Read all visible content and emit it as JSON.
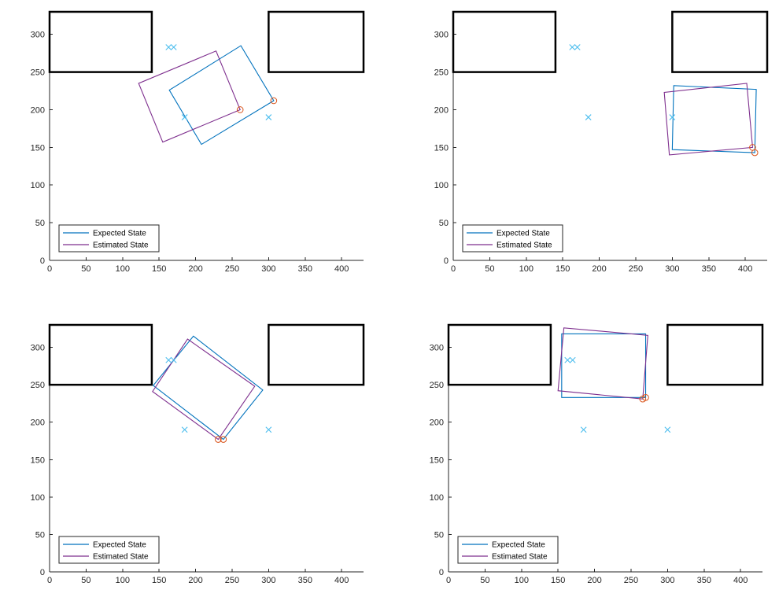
{
  "colors": {
    "expected": "#0072BD",
    "estimated": "#7E2F8E",
    "landmark": "#4DBEEE",
    "front_marker": "#D95319",
    "obstacle": "#000000",
    "axis": "#262626"
  },
  "legend": {
    "expected_label": "Expected State",
    "estimated_label": "Estimated State",
    "placement": "bottom-left"
  },
  "chart_data": [
    {
      "type": "scatter",
      "title": "",
      "xlabel": "",
      "ylabel": "",
      "xlim": [
        0,
        430
      ],
      "ylim": [
        0,
        330
      ],
      "xticks": [
        0,
        50,
        100,
        150,
        200,
        250,
        300,
        350,
        400
      ],
      "yticks": [
        0,
        50,
        100,
        150,
        200,
        250,
        300
      ],
      "grid": false,
      "obstacles": [
        {
          "x": [
            0,
            140
          ],
          "y": [
            250,
            330
          ]
        },
        {
          "x": [
            300,
            430
          ],
          "y": [
            250,
            330
          ]
        }
      ],
      "landmarks": [
        {
          "x": 163,
          "y": 283
        },
        {
          "x": 170,
          "y": 283
        },
        {
          "x": 185,
          "y": 190
        },
        {
          "x": 300,
          "y": 190
        }
      ],
      "series": [
        {
          "name": "Expected State",
          "corners": [
            [
              307,
              212
            ],
            [
              208,
              154
            ],
            [
              164,
              226
            ],
            [
              262,
              285
            ]
          ],
          "marker": [
            307,
            212
          ]
        },
        {
          "name": "Estimated State",
          "corners": [
            [
              261,
              200
            ],
            [
              155,
              157
            ],
            [
              122,
              235
            ],
            [
              228,
              278
            ]
          ],
          "marker": [
            261,
            200
          ]
        }
      ]
    },
    {
      "type": "scatter",
      "title": "",
      "xlabel": "",
      "ylabel": "",
      "xlim": [
        0,
        430
      ],
      "ylim": [
        0,
        330
      ],
      "xticks": [
        0,
        50,
        100,
        150,
        200,
        250,
        300,
        350,
        400
      ],
      "yticks": [
        0,
        50,
        100,
        150,
        200,
        250,
        300
      ],
      "grid": false,
      "obstacles": [
        {
          "x": [
            0,
            140
          ],
          "y": [
            250,
            330
          ]
        },
        {
          "x": [
            300,
            430
          ],
          "y": [
            250,
            330
          ]
        }
      ],
      "landmarks": [
        {
          "x": 163,
          "y": 283
        },
        {
          "x": 170,
          "y": 283
        },
        {
          "x": 185,
          "y": 190
        },
        {
          "x": 300,
          "y": 190
        }
      ],
      "series": [
        {
          "name": "Expected State",
          "corners": [
            [
              413,
              143
            ],
            [
              300,
              147
            ],
            [
              302,
              232
            ],
            [
              415,
              227
            ]
          ],
          "marker": [
            413,
            143
          ]
        },
        {
          "name": "Estimated State",
          "corners": [
            [
              410,
              150
            ],
            [
              296,
              140
            ],
            [
              289,
              223
            ],
            [
              402,
              235
            ]
          ],
          "marker": [
            410,
            150
          ]
        }
      ]
    },
    {
      "type": "scatter",
      "title": "",
      "xlabel": "",
      "ylabel": "",
      "xlim": [
        0,
        430
      ],
      "ylim": [
        0,
        330
      ],
      "xticks": [
        0,
        50,
        100,
        150,
        200,
        250,
        300,
        350,
        400
      ],
      "yticks": [
        0,
        50,
        100,
        150,
        200,
        250,
        300
      ],
      "grid": false,
      "obstacles": [
        {
          "x": [
            0,
            140
          ],
          "y": [
            250,
            330
          ]
        },
        {
          "x": [
            300,
            430
          ],
          "y": [
            250,
            330
          ]
        }
      ],
      "landmarks": [
        {
          "x": 163,
          "y": 283
        },
        {
          "x": 170,
          "y": 283
        },
        {
          "x": 185,
          "y": 190
        },
        {
          "x": 300,
          "y": 190
        }
      ],
      "series": [
        {
          "name": "Expected State",
          "corners": [
            [
              238,
              177
            ],
            [
              142,
              249
            ],
            [
              197,
              315
            ],
            [
              292,
              243
            ]
          ],
          "marker": [
            238,
            177
          ]
        },
        {
          "name": "Estimated State",
          "corners": [
            [
              231,
              177
            ],
            [
              141,
              241
            ],
            [
              189,
              311
            ],
            [
              281,
              248
            ]
          ],
          "marker": [
            231,
            177
          ]
        }
      ]
    },
    {
      "type": "scatter",
      "title": "",
      "xlabel": "",
      "ylabel": "",
      "xlim": [
        0,
        430
      ],
      "ylim": [
        0,
        330
      ],
      "xticks": [
        0,
        50,
        100,
        150,
        200,
        250,
        300,
        350,
        400
      ],
      "yticks": [
        0,
        50,
        100,
        150,
        200,
        250,
        300
      ],
      "grid": false,
      "obstacles": [
        {
          "x": [
            0,
            140
          ],
          "y": [
            250,
            330
          ]
        },
        {
          "x": [
            300,
            430
          ],
          "y": [
            250,
            330
          ]
        }
      ],
      "landmarks": [
        {
          "x": 163,
          "y": 283
        },
        {
          "x": 170,
          "y": 283
        },
        {
          "x": 185,
          "y": 190
        },
        {
          "x": 300,
          "y": 190
        }
      ],
      "series": [
        {
          "name": "Expected State",
          "corners": [
            [
              270,
              233
            ],
            [
              155,
              233
            ],
            [
              155,
              318
            ],
            [
              270,
              318
            ]
          ],
          "marker": [
            270,
            233
          ]
        },
        {
          "name": "Estimated State",
          "corners": [
            [
              266,
              231
            ],
            [
              150,
              242
            ],
            [
              158,
              326
            ],
            [
              273,
              316
            ]
          ],
          "marker": [
            266,
            231
          ]
        }
      ]
    }
  ]
}
